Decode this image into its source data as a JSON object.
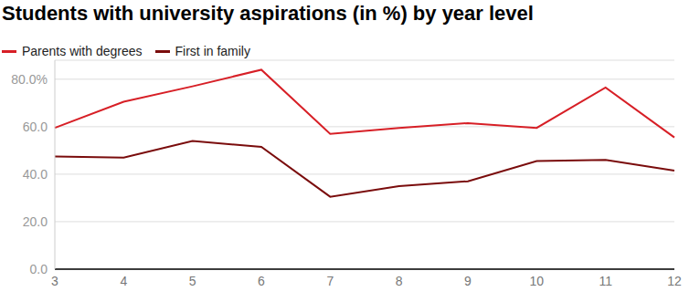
{
  "chart_data": {
    "type": "line",
    "title": "Students with university aspirations (in %) by year level",
    "categories": [
      3,
      4,
      5,
      6,
      7,
      8,
      9,
      10,
      11,
      12
    ],
    "series": [
      {
        "name": "Parents with degrees",
        "color": "#d71f26",
        "values": [
          59.5,
          70.5,
          77,
          84,
          57,
          59.5,
          61.5,
          59.5,
          76.5,
          55.5
        ]
      },
      {
        "name": "First in family",
        "color": "#7a0c0c",
        "values": [
          47.5,
          47,
          54,
          51.5,
          30.5,
          35,
          37,
          45.5,
          46,
          41.5
        ]
      }
    ],
    "ylim": [
      0,
      88
    ],
    "yticks": [
      {
        "value": 0,
        "label": "0.0"
      },
      {
        "value": 20,
        "label": "20.0"
      },
      {
        "value": 40,
        "label": "40.0"
      },
      {
        "value": 60,
        "label": "60.0"
      },
      {
        "value": 80,
        "label": "80.0%"
      }
    ],
    "grid": true,
    "legend": "top left"
  }
}
